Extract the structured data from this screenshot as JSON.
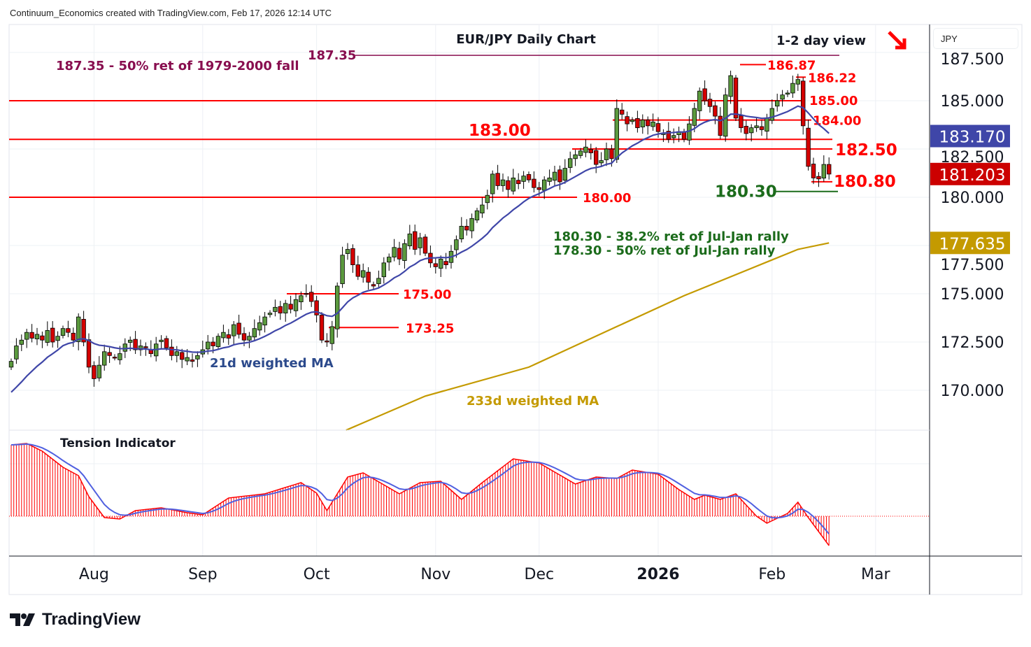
{
  "header": {
    "attribution": "Continuum_Economics created with TradingView.com, Feb 17, 2026 12:14 UTC"
  },
  "currency_button": "JPY",
  "logo_text": "TradingView",
  "chart_data": {
    "type": "candlestick",
    "title": "EUR/JPY Daily Chart",
    "subtitle": "1-2 day view",
    "bias": "down",
    "colors": {
      "up": "#5b9a3e",
      "down": "#d40000",
      "ma21": "#3f46a8",
      "ma233": "#c49a00",
      "resistance": "#ff0000",
      "support": "#1b6b1b",
      "fib": "#880e4f"
    },
    "x_axis": {
      "labels": [
        {
          "label": "Aug",
          "index": 16
        },
        {
          "label": "Sep",
          "index": 37
        },
        {
          "label": "Oct",
          "index": 59
        },
        {
          "label": "Nov",
          "index": 82
        },
        {
          "label": "Dec",
          "index": 102
        },
        {
          "label": "2026",
          "index": 125,
          "bold": true
        },
        {
          "label": "Feb",
          "index": 147
        },
        {
          "label": "Mar",
          "index": 167
        }
      ]
    },
    "y_axis": {
      "range": [
        168.0,
        188.5
      ],
      "ticks": [
        "170.000",
        "172.500",
        "175.000",
        "177.500",
        "180.000",
        "182.500",
        "185.000",
        "187.500"
      ]
    },
    "closes": [
      171.5,
      172.3,
      172.6,
      173.0,
      172.7,
      172.9,
      172.6,
      173.1,
      172.5,
      172.8,
      173.2,
      173.0,
      172.6,
      173.8,
      172.5,
      171.2,
      170.6,
      171.3,
      172.0,
      171.8,
      171.7,
      171.9,
      172.4,
      172.6,
      172.1,
      172.3,
      172.2,
      171.9,
      172.4,
      172.6,
      172.2,
      171.8,
      172.0,
      171.6,
      171.7,
      171.5,
      171.8,
      172.1,
      172.5,
      172.3,
      172.8,
      173.0,
      172.7,
      173.4,
      172.9,
      172.6,
      172.8,
      173.2,
      173.5,
      173.8,
      174.0,
      174.3,
      174.0,
      174.5,
      174.2,
      174.7,
      174.9,
      175.0,
      174.6,
      173.9,
      172.6,
      172.5,
      173.3,
      175.4,
      177.0,
      177.3,
      176.5,
      175.9,
      176.2,
      175.6,
      175.4,
      175.8,
      176.6,
      176.9,
      177.4,
      176.8,
      177.6,
      178.1,
      177.3,
      177.9,
      177.1,
      176.6,
      176.4,
      176.8,
      176.5,
      177.2,
      177.8,
      178.5,
      178.3,
      178.9,
      179.3,
      179.6,
      180.1,
      181.2,
      180.6,
      180.9,
      180.4,
      181.0,
      180.7,
      181.1,
      180.9,
      180.5,
      180.4,
      180.9,
      181.0,
      181.3,
      180.8,
      181.5,
      182.0,
      182.2,
      182.4,
      182.6,
      182.3,
      181.7,
      181.9,
      182.5,
      182.0,
      184.6,
      184.3,
      183.8,
      184.0,
      183.6,
      184.0,
      183.7,
      183.9,
      183.4,
      183.3,
      183.0,
      183.2,
      183.4,
      183.0,
      183.8,
      184.6,
      185.5,
      185.0,
      184.7,
      184.2,
      183.2,
      185.3,
      186.3,
      184.1,
      183.6,
      183.3,
      183.6,
      183.7,
      183.5,
      184.1,
      184.6,
      185.0,
      185.3,
      185.4,
      185.9,
      186.1,
      183.7,
      181.6,
      181.0,
      180.95,
      181.7,
      181.2
    ],
    "last_price": "181.203",
    "ma21": {
      "label": "21d weighted MA",
      "last": "183.170"
    },
    "ma233": {
      "label": "233d weighted MA",
      "last": "177.635",
      "points": [
        [
          64.7,
          167.9
        ],
        [
          80,
          169.7
        ],
        [
          100,
          171.2
        ],
        [
          117,
          173.3
        ],
        [
          130,
          174.9
        ],
        [
          146.5,
          176.7
        ],
        [
          152,
          177.3
        ],
        [
          158,
          177.635
        ]
      ]
    },
    "levels": [
      {
        "id": "l18735",
        "price": 187.35,
        "label": "187.35",
        "kind": "fib"
      },
      {
        "id": "l18687",
        "price": 186.87,
        "label": "186.87",
        "kind": "resistance"
      },
      {
        "id": "l18622",
        "price": 186.22,
        "label": "186.22",
        "kind": "resistance"
      },
      {
        "id": "l18500",
        "price": 185.0,
        "label": "185.00",
        "kind": "resistance"
      },
      {
        "id": "l18400",
        "price": 184.0,
        "label": "184.00",
        "kind": "resistance"
      },
      {
        "id": "l18300",
        "price": 183.0,
        "label": "183.00",
        "kind": "resistance"
      },
      {
        "id": "l18250",
        "price": 182.5,
        "label": "182.50",
        "kind": "resistance"
      },
      {
        "id": "l18080",
        "price": 180.8,
        "label": "180.80",
        "kind": "resistance"
      },
      {
        "id": "l18030",
        "price": 180.3,
        "label": "180.30",
        "kind": "support"
      },
      {
        "id": "l18000",
        "price": 180.0,
        "label": "180.00",
        "kind": "resistance"
      },
      {
        "id": "l17500",
        "price": 175.0,
        "label": "175.00",
        "kind": "resistance"
      },
      {
        "id": "l17325",
        "price": 173.25,
        "label": "173.25",
        "kind": "resistance"
      }
    ],
    "notes": {
      "fib_long": "187.35 - 50% ret of 1979-2000 fall",
      "fib1": "180.30 - 38.2% ret of Jul-Jan rally",
      "fib2": "178.30 - 50% ret of Jul-Jan rally"
    },
    "tension_indicator": {
      "label": "Tension Indicator",
      "keypoints": [
        [
          0,
          1.02
        ],
        [
          3,
          1.04
        ],
        [
          6,
          0.93
        ],
        [
          10,
          0.7
        ],
        [
          13,
          0.58
        ],
        [
          15,
          0.28
        ],
        [
          18,
          -0.02
        ],
        [
          21,
          -0.04
        ],
        [
          24,
          0.08
        ],
        [
          29,
          0.12
        ],
        [
          34,
          0.05
        ],
        [
          37,
          0.02
        ],
        [
          42,
          0.26
        ],
        [
          49,
          0.32
        ],
        [
          56,
          0.48
        ],
        [
          59,
          0.33
        ],
        [
          61,
          0.08
        ],
        [
          65,
          0.56
        ],
        [
          68,
          0.62
        ],
        [
          75,
          0.32
        ],
        [
          79,
          0.48
        ],
        [
          83,
          0.5
        ],
        [
          87,
          0.24
        ],
        [
          91,
          0.48
        ],
        [
          97,
          0.82
        ],
        [
          102,
          0.76
        ],
        [
          109,
          0.46
        ],
        [
          113,
          0.56
        ],
        [
          117,
          0.54
        ],
        [
          120,
          0.66
        ],
        [
          125,
          0.6
        ],
        [
          129,
          0.38
        ],
        [
          132,
          0.24
        ],
        [
          134,
          0.3
        ],
        [
          137,
          0.24
        ],
        [
          140,
          0.32
        ],
        [
          144,
          0.0
        ],
        [
          146,
          -0.1
        ],
        [
          150,
          0.04
        ],
        [
          152,
          0.2
        ],
        [
          154,
          -0.02
        ],
        [
          158,
          -0.42
        ]
      ]
    }
  }
}
